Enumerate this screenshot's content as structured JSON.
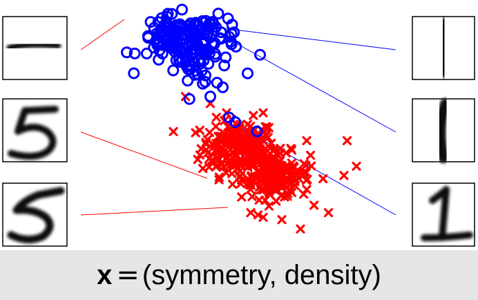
{
  "caption": {
    "bold_symbol": "x",
    "equals": "=",
    "text": "(symmetry, density)"
  },
  "colors": {
    "digit_1": "#0000ff",
    "digit_5": "#ff0000",
    "background": "#e6e6e6",
    "plot_background": "#ffffff"
  },
  "thumbnails": {
    "left": [
      "digit-1-horizontal-stroke",
      "digit-5-upright",
      "digit-5-slanted"
    ],
    "right": [
      "digit-1-thin",
      "digit-1-bold",
      "digit-1-with-base"
    ]
  },
  "chart_data": {
    "type": "scatter",
    "title": "",
    "xlabel": "",
    "ylabel": "",
    "grid": false,
    "legend": "none",
    "series": [
      {
        "marker": "o",
        "color": "#0000ff",
        "clusters": [
          {
            "cx": 0.3,
            "cy": 0.86,
            "sx": 0.06,
            "sy": 0.055,
            "n": 90
          },
          {
            "cx": 0.4,
            "cy": 0.87,
            "sx": 0.06,
            "sy": 0.045,
            "n": 60
          },
          {
            "cx": 0.36,
            "cy": 0.73,
            "sx": 0.03,
            "sy": 0.03,
            "n": 20
          }
        ],
        "outliers": [
          [
            0.57,
            0.8
          ],
          [
            0.41,
            0.62
          ],
          [
            0.47,
            0.53
          ],
          [
            0.49,
            0.51
          ],
          [
            0.56,
            0.47
          ],
          [
            0.45,
            0.66
          ],
          [
            0.53,
            0.72
          ],
          [
            0.29,
            0.91
          ]
        ]
      },
      {
        "marker": "x",
        "color": "#ff0000",
        "clusters": [
          {
            "cx": 0.5,
            "cy": 0.4,
            "sx": 0.06,
            "sy": 0.06,
            "n": 200
          },
          {
            "cx": 0.62,
            "cy": 0.28,
            "sx": 0.055,
            "sy": 0.05,
            "n": 170
          }
        ],
        "outliers": [
          [
            0.29,
            0.93
          ],
          [
            0.33,
            0.62
          ],
          [
            0.41,
            0.59
          ],
          [
            0.58,
            0.55
          ],
          [
            0.53,
            0.5
          ],
          [
            0.85,
            0.43
          ],
          [
            0.72,
            0.43
          ],
          [
            0.88,
            0.32
          ],
          [
            0.58,
            0.1
          ],
          [
            0.64,
            0.09
          ],
          [
            0.7,
            0.05
          ],
          [
            0.79,
            0.12
          ],
          [
            0.6,
            0.2
          ],
          [
            0.72,
            0.22
          ],
          [
            0.84,
            0.28
          ],
          [
            0.54,
            0.12
          ]
        ]
      }
    ]
  }
}
